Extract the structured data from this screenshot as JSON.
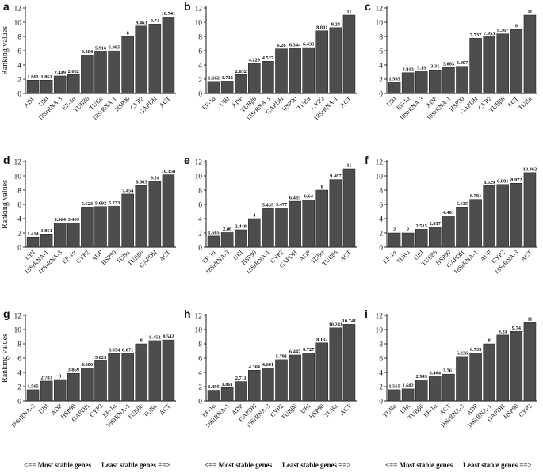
{
  "footer": {
    "left_label": "<== Most stable genes",
    "right_label": "Least stable genes ==>"
  },
  "colors": {
    "bar": "#4d4d4d",
    "axis": "#000000",
    "text": "#111111"
  },
  "chart_data": [
    {
      "panel": "a",
      "type": "bar",
      "ylabel": "Ranking values",
      "ylim": [
        0,
        12
      ],
      "yticks": [
        0,
        2,
        4,
        6,
        8,
        10,
        12
      ],
      "categories": [
        "ADP",
        "UBI",
        "18SrRNA-3",
        "EF-1α",
        "TUBβ6",
        "TUBα",
        "18SrRNA-1",
        "HSP90",
        "CYP2",
        "GAPDH",
        "ACT"
      ],
      "values": [
        1.861,
        1.861,
        2.449,
        2.632,
        5.384,
        5.916,
        5.985,
        8,
        9.463,
        9.74,
        10.741
      ],
      "value_labels": [
        "1.861",
        "1.861",
        "2.449",
        "2.632",
        "5.384",
        "5.916",
        "5.985",
        "8",
        "9.463",
        "9.74",
        "10.741"
      ]
    },
    {
      "panel": "b",
      "type": "bar",
      "ylabel": "",
      "ylim": [
        0,
        12
      ],
      "yticks": [
        0,
        2,
        4,
        6,
        8,
        10,
        12
      ],
      "categories": [
        "EF-1α",
        "UBI",
        "ADP",
        "TUBβ6",
        "18SrRNA-3",
        "GAPDH",
        "HSP90",
        "TUBα",
        "CYP2",
        "18SrRNA-1",
        "ACT"
      ],
      "values": [
        1.682,
        1.732,
        2.632,
        4.229,
        4.527,
        6.26,
        6.344,
        6.435,
        8.801,
        9.24,
        11
      ],
      "value_labels": [
        "1.682",
        "1.732",
        "2.632",
        "4.229",
        "4.527",
        "6.26",
        "6.344",
        "6.435",
        "8.801",
        "9.24",
        "11"
      ]
    },
    {
      "panel": "c",
      "type": "bar",
      "ylabel": "",
      "ylim": [
        0,
        12
      ],
      "yticks": [
        0,
        2,
        4,
        6,
        8,
        10,
        12
      ],
      "categories": [
        "UBI",
        "EF-1α",
        "18SrRNA-3",
        "ADP",
        "18SrRNA-1",
        "HSP90",
        "GAPDH",
        "CYP2",
        "TUBβ6",
        "ACT",
        "TUBα"
      ],
      "values": [
        1.565,
        2.913,
        3.13,
        3.31,
        3.663,
        3.807,
        7.737,
        7.953,
        8.367,
        9,
        11
      ],
      "value_labels": [
        "1.565",
        "2.913",
        "3.13",
        "3.31",
        "3.663",
        "3.807",
        "7.737",
        "7.953",
        "8.367",
        "9",
        "11"
      ]
    },
    {
      "panel": "d",
      "type": "bar",
      "ylabel": "Ranking values",
      "ylim": [
        0,
        12
      ],
      "yticks": [
        0,
        2,
        4,
        6,
        8,
        10,
        12
      ],
      "categories": [
        "UBI",
        "18SrRNA-1",
        "18SrRNA-3",
        "EF-1α",
        "CYP2",
        "ADP",
        "HSP90",
        "TUBα",
        "TUBβ6",
        "GAPDH",
        "ACT"
      ],
      "values": [
        1.414,
        1.861,
        3.364,
        3.409,
        5.623,
        5.692,
        5.733,
        7.454,
        8.663,
        9.24,
        10.158
      ],
      "value_labels": [
        "1.414",
        "1.861",
        "3.364",
        "3.409",
        "5.623",
        "5.692",
        "5.733",
        "7.454",
        "8.663",
        "9.24",
        "10.158"
      ]
    },
    {
      "panel": "e",
      "type": "bar",
      "ylabel": "",
      "ylim": [
        0,
        12
      ],
      "yticks": [
        0,
        2,
        4,
        6,
        8,
        10,
        12
      ],
      "categories": [
        "EF-1α",
        "18SrRNA-3",
        "UBI",
        "HSP90",
        "18SrRNA-1",
        "CYP2",
        "GAPDH",
        "ADP",
        "TUBα",
        "TUBβ6",
        "ACT"
      ],
      "values": [
        1.565,
        2.06,
        2.449,
        4,
        5.439,
        5.477,
        6.435,
        6.64,
        8,
        9.487,
        11
      ],
      "value_labels": [
        "1.565",
        "2.06",
        "2.449",
        "4",
        "5.439",
        "5.477",
        "6.435",
        "6.64",
        "8",
        "9.487",
        "11"
      ]
    },
    {
      "panel": "f",
      "type": "bar",
      "ylabel": "",
      "ylim": [
        0,
        12
      ],
      "yticks": [
        0,
        2,
        4,
        6,
        8,
        10,
        12
      ],
      "categories": [
        "EF-1α",
        "TUBα",
        "UBI",
        "TUBβ6",
        "HSP90",
        "GAPDH",
        "18SrRNA-1",
        "ADP",
        "CYP2",
        "18SrRNA-3",
        "ACT"
      ],
      "values": [
        2,
        2,
        2.515,
        2.817,
        4.401,
        5.635,
        6.701,
        8.629,
        8.801,
        8.972,
        10.462
      ],
      "value_labels": [
        "2",
        "2",
        "2.515",
        "2.817",
        "4.401",
        "5.635",
        "6.701",
        "8.629",
        "8.801",
        "8.972",
        "10.462"
      ]
    },
    {
      "panel": "g",
      "type": "bar",
      "ylabel": "Ranking values",
      "ylim": [
        0,
        12
      ],
      "yticks": [
        0,
        2,
        4,
        6,
        8,
        10,
        12
      ],
      "categories": [
        "18SrRNA-3",
        "UBI",
        "ADP",
        "HSP90",
        "GAPDH",
        "CYP2",
        "EF-1α",
        "18SrRNA-1",
        "TUBβ6",
        "TUBα",
        "ACT"
      ],
      "values": [
        1.565,
        2.783,
        3,
        3.869,
        4.606,
        5.623,
        6.654,
        6.671,
        8,
        8.452,
        8.542
      ],
      "value_labels": [
        "1.565",
        "2.783",
        "3",
        "3.869",
        "4.606",
        "5.623",
        "6.654",
        "6.671",
        "8",
        "8.452",
        "8.542"
      ]
    },
    {
      "panel": "h",
      "type": "bar",
      "ylabel": "",
      "ylim": [
        0,
        12
      ],
      "yticks": [
        0,
        2,
        4,
        6,
        8,
        10,
        12
      ],
      "categories": [
        "EF-1α",
        "18SrRNA-1",
        "ADP",
        "GAPDH",
        "18SrRNA-3",
        "CYP2",
        "TUBβ6",
        "UBI",
        "HSP90",
        "TUBα",
        "ACT"
      ],
      "values": [
        1.495,
        1.861,
        2.711,
        4.304,
        4.601,
        5.791,
        6.447,
        6.727,
        8.132,
        10.241,
        10.741
      ],
      "value_labels": [
        "1.495",
        "1.861",
        "2.711",
        "4.304",
        "4.601",
        "5.791",
        "6.447",
        "6.727",
        "8.132",
        "10.241",
        "10.741"
      ]
    },
    {
      "panel": "i",
      "type": "bar",
      "ylabel": "",
      "ylim": [
        0,
        12
      ],
      "yticks": [
        0,
        2,
        4,
        6,
        8,
        10,
        12
      ],
      "categories": [
        "TUBα",
        "UBI",
        "TUBβ6",
        "EF-1α",
        "ACT",
        "18SrRNA-3",
        "ADP",
        "18SrRNA-1",
        "GAPDH",
        "HSP90",
        "CYP2"
      ],
      "values": [
        1.565,
        1.682,
        2.943,
        3.464,
        3.761,
        6.236,
        6.735,
        8,
        9.24,
        9.74,
        11
      ],
      "value_labels": [
        "1.565",
        "1.682",
        "2.943",
        "3.464",
        "3.761",
        "6.236",
        "6.735",
        "8",
        "9.24",
        "9.74",
        "11"
      ]
    }
  ]
}
